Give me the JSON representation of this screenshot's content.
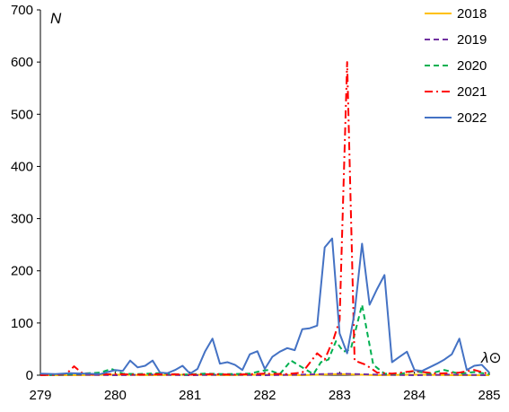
{
  "chart_data": {
    "type": "line",
    "title": "",
    "xlabel": "λ⊙",
    "ylabel": "N",
    "xlim": [
      279,
      285
    ],
    "ylim": [
      0,
      700
    ],
    "xticks": [
      "279",
      "280",
      "281",
      "282",
      "283",
      "284",
      "285"
    ],
    "yticks": [
      "0",
      "100",
      "200",
      "300",
      "400",
      "500",
      "600",
      "700"
    ],
    "grid": false,
    "legend_position": "top-right",
    "series": [
      {
        "name": "2018",
        "color": "#FFC000",
        "dash": "solid",
        "points": [
          [
            279.0,
            0
          ],
          [
            279.5,
            0
          ],
          [
            280.0,
            1
          ],
          [
            280.5,
            0
          ],
          [
            281.0,
            1
          ],
          [
            281.5,
            0
          ],
          [
            282.0,
            1
          ],
          [
            282.5,
            0
          ],
          [
            283.0,
            2
          ],
          [
            283.5,
            0
          ],
          [
            284.0,
            1
          ],
          [
            284.5,
            0
          ],
          [
            285.0,
            0
          ]
        ]
      },
      {
        "name": "2019",
        "color": "#7030A0",
        "dash": "dashed",
        "points": [
          [
            279.0,
            0
          ],
          [
            279.5,
            1
          ],
          [
            280.0,
            0
          ],
          [
            280.5,
            1
          ],
          [
            281.0,
            0
          ],
          [
            281.5,
            1
          ],
          [
            282.0,
            0
          ],
          [
            282.5,
            1
          ],
          [
            283.0,
            3
          ],
          [
            283.5,
            1
          ],
          [
            284.0,
            0
          ],
          [
            284.5,
            1
          ],
          [
            285.0,
            0
          ]
        ]
      },
      {
        "name": "2020",
        "color": "#00B050",
        "dash": "dashed",
        "points": [
          [
            279.0,
            0
          ],
          [
            279.4,
            2
          ],
          [
            279.8,
            5
          ],
          [
            279.95,
            12
          ],
          [
            280.1,
            3
          ],
          [
            280.3,
            2
          ],
          [
            280.6,
            4
          ],
          [
            280.9,
            1
          ],
          [
            281.2,
            3
          ],
          [
            281.5,
            2
          ],
          [
            281.8,
            3
          ],
          [
            281.95,
            8
          ],
          [
            282.05,
            10
          ],
          [
            282.2,
            2
          ],
          [
            282.35,
            28
          ],
          [
            282.5,
            15
          ],
          [
            282.65,
            2
          ],
          [
            282.75,
            25
          ],
          [
            282.85,
            30
          ],
          [
            282.95,
            65
          ],
          [
            283.05,
            45
          ],
          [
            283.15,
            50
          ],
          [
            283.3,
            135
          ],
          [
            283.45,
            20
          ],
          [
            283.6,
            3
          ],
          [
            283.8,
            2
          ],
          [
            284.0,
            8
          ],
          [
            284.2,
            3
          ],
          [
            284.4,
            10
          ],
          [
            284.6,
            3
          ],
          [
            284.8,
            6
          ],
          [
            285.0,
            2
          ]
        ]
      },
      {
        "name": "2021",
        "color": "#FF0000",
        "dash": "dashdot",
        "points": [
          [
            279.0,
            0
          ],
          [
            279.2,
            1
          ],
          [
            279.35,
            3
          ],
          [
            279.45,
            17
          ],
          [
            279.55,
            5
          ],
          [
            279.7,
            1
          ],
          [
            280.0,
            2
          ],
          [
            280.3,
            1
          ],
          [
            280.6,
            2
          ],
          [
            281.0,
            1
          ],
          [
            281.3,
            2
          ],
          [
            281.6,
            1
          ],
          [
            282.0,
            3
          ],
          [
            282.3,
            2
          ],
          [
            282.5,
            5
          ],
          [
            282.7,
            42
          ],
          [
            282.8,
            30
          ],
          [
            282.92,
            70
          ],
          [
            283.0,
            105
          ],
          [
            283.1,
            600
          ],
          [
            283.2,
            28
          ],
          [
            283.35,
            20
          ],
          [
            283.5,
            5
          ],
          [
            283.7,
            3
          ],
          [
            284.0,
            8
          ],
          [
            284.3,
            3
          ],
          [
            284.6,
            5
          ],
          [
            284.8,
            10
          ],
          [
            284.9,
            6
          ],
          [
            285.0,
            2
          ]
        ]
      },
      {
        "name": "2022",
        "color": "#4472C4",
        "dash": "solid",
        "points": [
          [
            279.0,
            3
          ],
          [
            279.2,
            2
          ],
          [
            279.4,
            4
          ],
          [
            279.6,
            3
          ],
          [
            279.8,
            2
          ],
          [
            280.0,
            10
          ],
          [
            280.1,
            8
          ],
          [
            280.2,
            28
          ],
          [
            280.3,
            15
          ],
          [
            280.4,
            18
          ],
          [
            280.5,
            28
          ],
          [
            280.6,
            5
          ],
          [
            280.7,
            4
          ],
          [
            280.8,
            10
          ],
          [
            280.9,
            18
          ],
          [
            281.0,
            3
          ],
          [
            281.1,
            12
          ],
          [
            281.2,
            45
          ],
          [
            281.3,
            70
          ],
          [
            281.4,
            22
          ],
          [
            281.5,
            25
          ],
          [
            281.6,
            20
          ],
          [
            281.7,
            10
          ],
          [
            281.8,
            40
          ],
          [
            281.9,
            46
          ],
          [
            282.0,
            12
          ],
          [
            282.1,
            35
          ],
          [
            282.2,
            45
          ],
          [
            282.3,
            52
          ],
          [
            282.4,
            48
          ],
          [
            282.5,
            88
          ],
          [
            282.6,
            90
          ],
          [
            282.7,
            95
          ],
          [
            282.8,
            245
          ],
          [
            282.9,
            262
          ],
          [
            283.0,
            80
          ],
          [
            283.1,
            42
          ],
          [
            283.2,
            120
          ],
          [
            283.3,
            252
          ],
          [
            283.4,
            135
          ],
          [
            283.5,
            165
          ],
          [
            283.6,
            192
          ],
          [
            283.7,
            25
          ],
          [
            283.8,
            35
          ],
          [
            283.9,
            45
          ],
          [
            284.0,
            10
          ],
          [
            284.1,
            8
          ],
          [
            284.2,
            15
          ],
          [
            284.3,
            22
          ],
          [
            284.4,
            30
          ],
          [
            284.5,
            40
          ],
          [
            284.6,
            70
          ],
          [
            284.7,
            10
          ],
          [
            284.8,
            18
          ],
          [
            284.9,
            20
          ],
          [
            285.0,
            5
          ]
        ]
      }
    ]
  }
}
